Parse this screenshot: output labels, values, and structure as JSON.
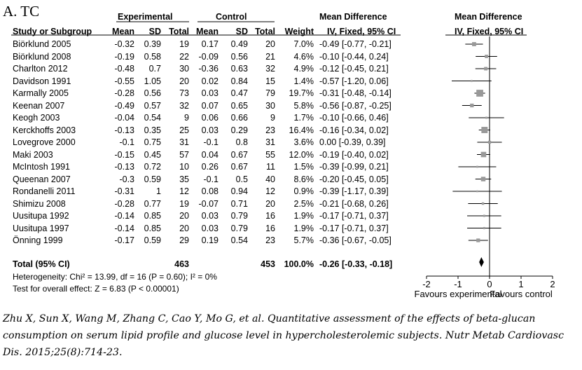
{
  "panel_label": "A. TC",
  "headers": {
    "experimental": "Experimental",
    "control": "Control",
    "md_text": "Mean Difference",
    "md_plot": "Mean Difference",
    "study": "Study or Subgroup",
    "mean": "Mean",
    "sd": "SD",
    "total": "Total",
    "weight": "Weight",
    "method_text": "IV, Fixed, 95% CI",
    "method_plot": "IV, Fixed, 95% CI"
  },
  "studies": [
    {
      "name": "Biörklund 2005",
      "e_mean": "-0.32",
      "e_sd": "0.39",
      "e_total": "19",
      "c_mean": "0.17",
      "c_sd": "0.49",
      "c_total": "20",
      "weight": "7.0%",
      "ci_text": "-0.49 [-0.77, -0.21]"
    },
    {
      "name": "Biörklund 2008",
      "e_mean": "-0.19",
      "e_sd": "0.58",
      "e_total": "22",
      "c_mean": "-0.09",
      "c_sd": "0.56",
      "c_total": "21",
      "weight": "4.6%",
      "ci_text": "-0.10 [-0.44, 0.24]"
    },
    {
      "name": "Charlton 2012",
      "e_mean": "-0.48",
      "e_sd": "0.7",
      "e_total": "30",
      "c_mean": "-0.36",
      "c_sd": "0.63",
      "c_total": "32",
      "weight": "4.9%",
      "ci_text": "-0.12 [-0.45, 0.21]"
    },
    {
      "name": "Davidson 1991",
      "e_mean": "-0.55",
      "e_sd": "1.05",
      "e_total": "20",
      "c_mean": "0.02",
      "c_sd": "0.84",
      "c_total": "15",
      "weight": "1.4%",
      "ci_text": "-0.57 [-1.20, 0.06]"
    },
    {
      "name": "Karmally 2005",
      "e_mean": "-0.28",
      "e_sd": "0.56",
      "e_total": "73",
      "c_mean": "0.03",
      "c_sd": "0.47",
      "c_total": "79",
      "weight": "19.7%",
      "ci_text": "-0.31 [-0.48, -0.14]"
    },
    {
      "name": "Keenan 2007",
      "e_mean": "-0.49",
      "e_sd": "0.57",
      "e_total": "32",
      "c_mean": "0.07",
      "c_sd": "0.65",
      "c_total": "30",
      "weight": "5.8%",
      "ci_text": "-0.56 [-0.87, -0.25]"
    },
    {
      "name": "Keogh 2003",
      "e_mean": "-0.04",
      "e_sd": "0.54",
      "e_total": "9",
      "c_mean": "0.06",
      "c_sd": "0.66",
      "c_total": "9",
      "weight": "1.7%",
      "ci_text": "-0.10 [-0.66, 0.46]"
    },
    {
      "name": "Kerckhoffs 2003",
      "e_mean": "-0.13",
      "e_sd": "0.35",
      "e_total": "25",
      "c_mean": "0.03",
      "c_sd": "0.29",
      "c_total": "23",
      "weight": "16.4%",
      "ci_text": "-0.16 [-0.34, 0.02]"
    },
    {
      "name": "Lovegrove 2000",
      "e_mean": "-0.1",
      "e_sd": "0.75",
      "e_total": "31",
      "c_mean": "-0.1",
      "c_sd": "0.8",
      "c_total": "31",
      "weight": "3.6%",
      "ci_text": "0.00 [-0.39, 0.39]"
    },
    {
      "name": "Maki 2003",
      "e_mean": "-0.15",
      "e_sd": "0.45",
      "e_total": "57",
      "c_mean": "0.04",
      "c_sd": "0.67",
      "c_total": "55",
      "weight": "12.0%",
      "ci_text": "-0.19 [-0.40, 0.02]"
    },
    {
      "name": "McIntosh 1991",
      "e_mean": "-0.13",
      "e_sd": "0.72",
      "e_total": "10",
      "c_mean": "0.26",
      "c_sd": "0.67",
      "c_total": "11",
      "weight": "1.5%",
      "ci_text": "-0.39 [-0.99, 0.21]"
    },
    {
      "name": "Queenan 2007",
      "e_mean": "-0.3",
      "e_sd": "0.59",
      "e_total": "35",
      "c_mean": "-0.1",
      "c_sd": "0.5",
      "c_total": "40",
      "weight": "8.6%",
      "ci_text": "-0.20 [-0.45, 0.05]"
    },
    {
      "name": "Rondanelli 2011",
      "e_mean": "-0.31",
      "e_sd": "1",
      "e_total": "12",
      "c_mean": "0.08",
      "c_sd": "0.94",
      "c_total": "12",
      "weight": "0.9%",
      "ci_text": "-0.39 [-1.17, 0.39]"
    },
    {
      "name": "Shimizu 2008",
      "e_mean": "-0.28",
      "e_sd": "0.77",
      "e_total": "19",
      "c_mean": "-0.07",
      "c_sd": "0.71",
      "c_total": "20",
      "weight": "2.5%",
      "ci_text": "-0.21 [-0.68, 0.26]"
    },
    {
      "name": "Uusitupa 1992",
      "e_mean": "-0.14",
      "e_sd": "0.85",
      "e_total": "20",
      "c_mean": "0.03",
      "c_sd": "0.79",
      "c_total": "16",
      "weight": "1.9%",
      "ci_text": "-0.17 [-0.71, 0.37]"
    },
    {
      "name": "Uusitupa 1997",
      "e_mean": "-0.14",
      "e_sd": "0.85",
      "e_total": "20",
      "c_mean": "0.03",
      "c_sd": "0.79",
      "c_total": "16",
      "weight": "1.9%",
      "ci_text": "-0.17 [-0.71, 0.37]"
    },
    {
      "name": "Önning 1999",
      "e_mean": "-0.17",
      "e_sd": "0.59",
      "e_total": "29",
      "c_mean": "0.19",
      "c_sd": "0.54",
      "c_total": "23",
      "weight": "5.7%",
      "ci_text": "-0.36 [-0.67, -0.05]"
    }
  ],
  "total": {
    "label": "Total (95% CI)",
    "e_total": "463",
    "c_total": "453",
    "weight": "100.0%",
    "ci_text": "-0.26 [-0.33, -0.18]"
  },
  "heterogeneity": "Heterogeneity: Chi² = 13.99, df = 16 (P = 0.60); I² = 0%",
  "overall_effect": "Test for overall effect: Z = 6.83 (P < 0.00001)",
  "axis": {
    "favours_left": "Favours experimental",
    "favours_right": "Favours control"
  },
  "citation": "Zhu X, Sun X, Wang M, Zhang C, Cao Y, Mo G, et al. Quantitative assessment of the effects of beta-glucan consumption on serum lipid profile and glucose level in hypercholesterolemic subjects. Nutr Metab Cardiovasc Dis. 2015;25(8):714-23.",
  "colors": {
    "square": "#999999",
    "line": "#000000",
    "diamond": "#000000"
  },
  "chart_data": {
    "type": "forest",
    "xlim": [
      -2,
      2
    ],
    "x_ticks": [
      -2,
      -1,
      0,
      1,
      2
    ],
    "reference_line": 0,
    "xlabel_left": "Favours experimental",
    "xlabel_right": "Favours control",
    "studies": [
      {
        "name": "Biörklund 2005",
        "md": -0.49,
        "lo": -0.77,
        "hi": -0.21,
        "weight": 7.0
      },
      {
        "name": "Biörklund 2008",
        "md": -0.1,
        "lo": -0.44,
        "hi": 0.24,
        "weight": 4.6
      },
      {
        "name": "Charlton 2012",
        "md": -0.12,
        "lo": -0.45,
        "hi": 0.21,
        "weight": 4.9
      },
      {
        "name": "Davidson 1991",
        "md": -0.57,
        "lo": -1.2,
        "hi": 0.06,
        "weight": 1.4
      },
      {
        "name": "Karmally 2005",
        "md": -0.31,
        "lo": -0.48,
        "hi": -0.14,
        "weight": 19.7
      },
      {
        "name": "Keenan 2007",
        "md": -0.56,
        "lo": -0.87,
        "hi": -0.25,
        "weight": 5.8
      },
      {
        "name": "Keogh 2003",
        "md": -0.1,
        "lo": -0.66,
        "hi": 0.46,
        "weight": 1.7
      },
      {
        "name": "Kerckhoffs 2003",
        "md": -0.16,
        "lo": -0.34,
        "hi": 0.02,
        "weight": 16.4
      },
      {
        "name": "Lovegrove 2000",
        "md": 0.0,
        "lo": -0.39,
        "hi": 0.39,
        "weight": 3.6
      },
      {
        "name": "Maki 2003",
        "md": -0.19,
        "lo": -0.4,
        "hi": 0.02,
        "weight": 12.0
      },
      {
        "name": "McIntosh 1991",
        "md": -0.39,
        "lo": -0.99,
        "hi": 0.21,
        "weight": 1.5
      },
      {
        "name": "Queenan 2007",
        "md": -0.2,
        "lo": -0.45,
        "hi": 0.05,
        "weight": 8.6
      },
      {
        "name": "Rondanelli 2011",
        "md": -0.39,
        "lo": -1.17,
        "hi": 0.39,
        "weight": 0.9
      },
      {
        "name": "Shimizu 2008",
        "md": -0.21,
        "lo": -0.68,
        "hi": 0.26,
        "weight": 2.5
      },
      {
        "name": "Uusitupa 1992",
        "md": -0.17,
        "lo": -0.71,
        "hi": 0.37,
        "weight": 1.9
      },
      {
        "name": "Uusitupa 1997",
        "md": -0.17,
        "lo": -0.71,
        "hi": 0.37,
        "weight": 1.9
      },
      {
        "name": "Önning 1999",
        "md": -0.36,
        "lo": -0.67,
        "hi": -0.05,
        "weight": 5.7
      }
    ],
    "pooled": {
      "md": -0.26,
      "lo": -0.33,
      "hi": -0.18
    }
  }
}
